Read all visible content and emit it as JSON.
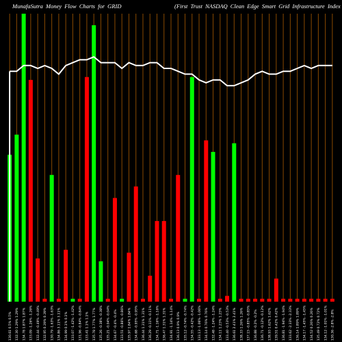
{
  "chart_data": {
    "type": "bar",
    "title": "MunafaSutra  Money Flow  Charts for GRID",
    "subtitle": "(First Trust NASDAQ Clean  Edge   Smart Grid Infrastructure   Index )",
    "xlabel": "",
    "ylabel": "",
    "ylim": [
      0,
      100
    ],
    "grid": true,
    "colors": {
      "up": "#00ff00",
      "down": "#ff0000",
      "grid": "#8a4a00",
      "line": "#ffffff",
      "background": "#000000"
    },
    "categories": [
      "130.61 0.5% 0.5%",
      "132.30 1.29% 1.29%",
      "134.78 1.87% 1.87%",
      "133.09 -1.26% -1.26%",
      "132.44 -0.49% -0.49%",
      "132.95 0.39% 0.39%",
      "130.79 -1.63% -1.63%",
      "134.86 3.11% 3.11%",
      "134.99 0.1% 0.1%",
      "133.07 -1.42% -1.42%",
      "131.96 -0.84% -0.84%",
      "133.41 1.1% 1.1%",
      "135.78 1.77% 1.77%",
      "135.26 -0.38% -0.38%",
      "135.21 -0.04% -0.04%",
      "134.67 -0.4% -0.4%",
      "133.51 -0.86% -0.86%",
      "135.97 1.84% 1.84%",
      "134.68 -0.95% -0.95%",
      "136.44 1.31% 1.31%",
      "136.29 -0.11% -0.11%",
      "134.71 -1.16% -1.16%",
      "136.47 1.31% 1.31%",
      "134.91 -1.14% -1.14%",
      "136.13 0.9% 0.9%",
      "135.12 -0.74% -0.74%",
      "134.55 -0.42% -0.42%",
      "133.13 -1.06% -1.06%",
      "134.14 0.76% 0.76%",
      "132.48 -1.24% -1.24%",
      "134.11 1.23% 1.23%",
      "133.40 -0.53% -0.53%",
      "136.61 2.41% 2.41%",
      "138.33 1.26% 1.26%",
      "137.15 -0.85% -0.85%",
      "136.88 -0.2% -0.2%",
      "136.71 -0.12% -0.12%",
      "138.93 1.62% 1.62%",
      "139.51 0.42% 0.42%",
      "136.81 -1.94% -1.94%",
      "133.62 -2.33% -2.33%",
      "136.14 1.89% 1.89%",
      "134.17 -1.45% -1.45%",
      "134.52 0.26% 0.26%",
      "135.49 0.72% 0.72%",
      "134.12 -1.01% -1.01%",
      "130.36 -2.8% -2.8%"
    ],
    "series": [
      {
        "kind": "bar",
        "values": [
          51,
          58,
          100,
          77,
          15,
          1,
          44,
          1,
          18,
          1,
          1,
          78,
          96,
          14,
          1,
          36,
          1,
          17,
          40,
          1,
          9,
          28,
          28,
          1,
          44,
          1,
          78,
          1,
          56,
          52,
          1,
          2,
          55,
          1,
          1,
          1,
          1,
          1,
          8,
          1,
          1,
          1,
          1,
          1,
          1,
          1,
          1
        ],
        "directions": [
          "up",
          "up",
          "up",
          "down",
          "down",
          "down",
          "up",
          "down",
          "down",
          "up",
          "down",
          "down",
          "up",
          "up",
          "down",
          "down",
          "up",
          "down",
          "down",
          "down",
          "down",
          "down",
          "down",
          "down",
          "down",
          "up",
          "up",
          "down",
          "down",
          "up",
          "down",
          "down",
          "up",
          "down",
          "down",
          "down",
          "down",
          "down",
          "down",
          "down",
          "down",
          "down",
          "down",
          "down",
          "down",
          "down",
          "down"
        ]
      },
      {
        "kind": "line",
        "values": [
          80,
          80,
          82,
          82,
          81,
          82,
          81,
          79,
          82,
          83,
          84,
          84,
          85,
          83,
          83,
          83,
          81,
          83,
          82,
          82,
          83,
          83,
          81,
          81,
          80,
          79,
          79,
          77,
          76,
          77,
          77,
          75,
          75,
          76,
          77,
          79,
          80,
          79,
          79,
          80,
          80,
          81,
          82,
          81,
          82,
          82,
          82
        ]
      }
    ]
  }
}
